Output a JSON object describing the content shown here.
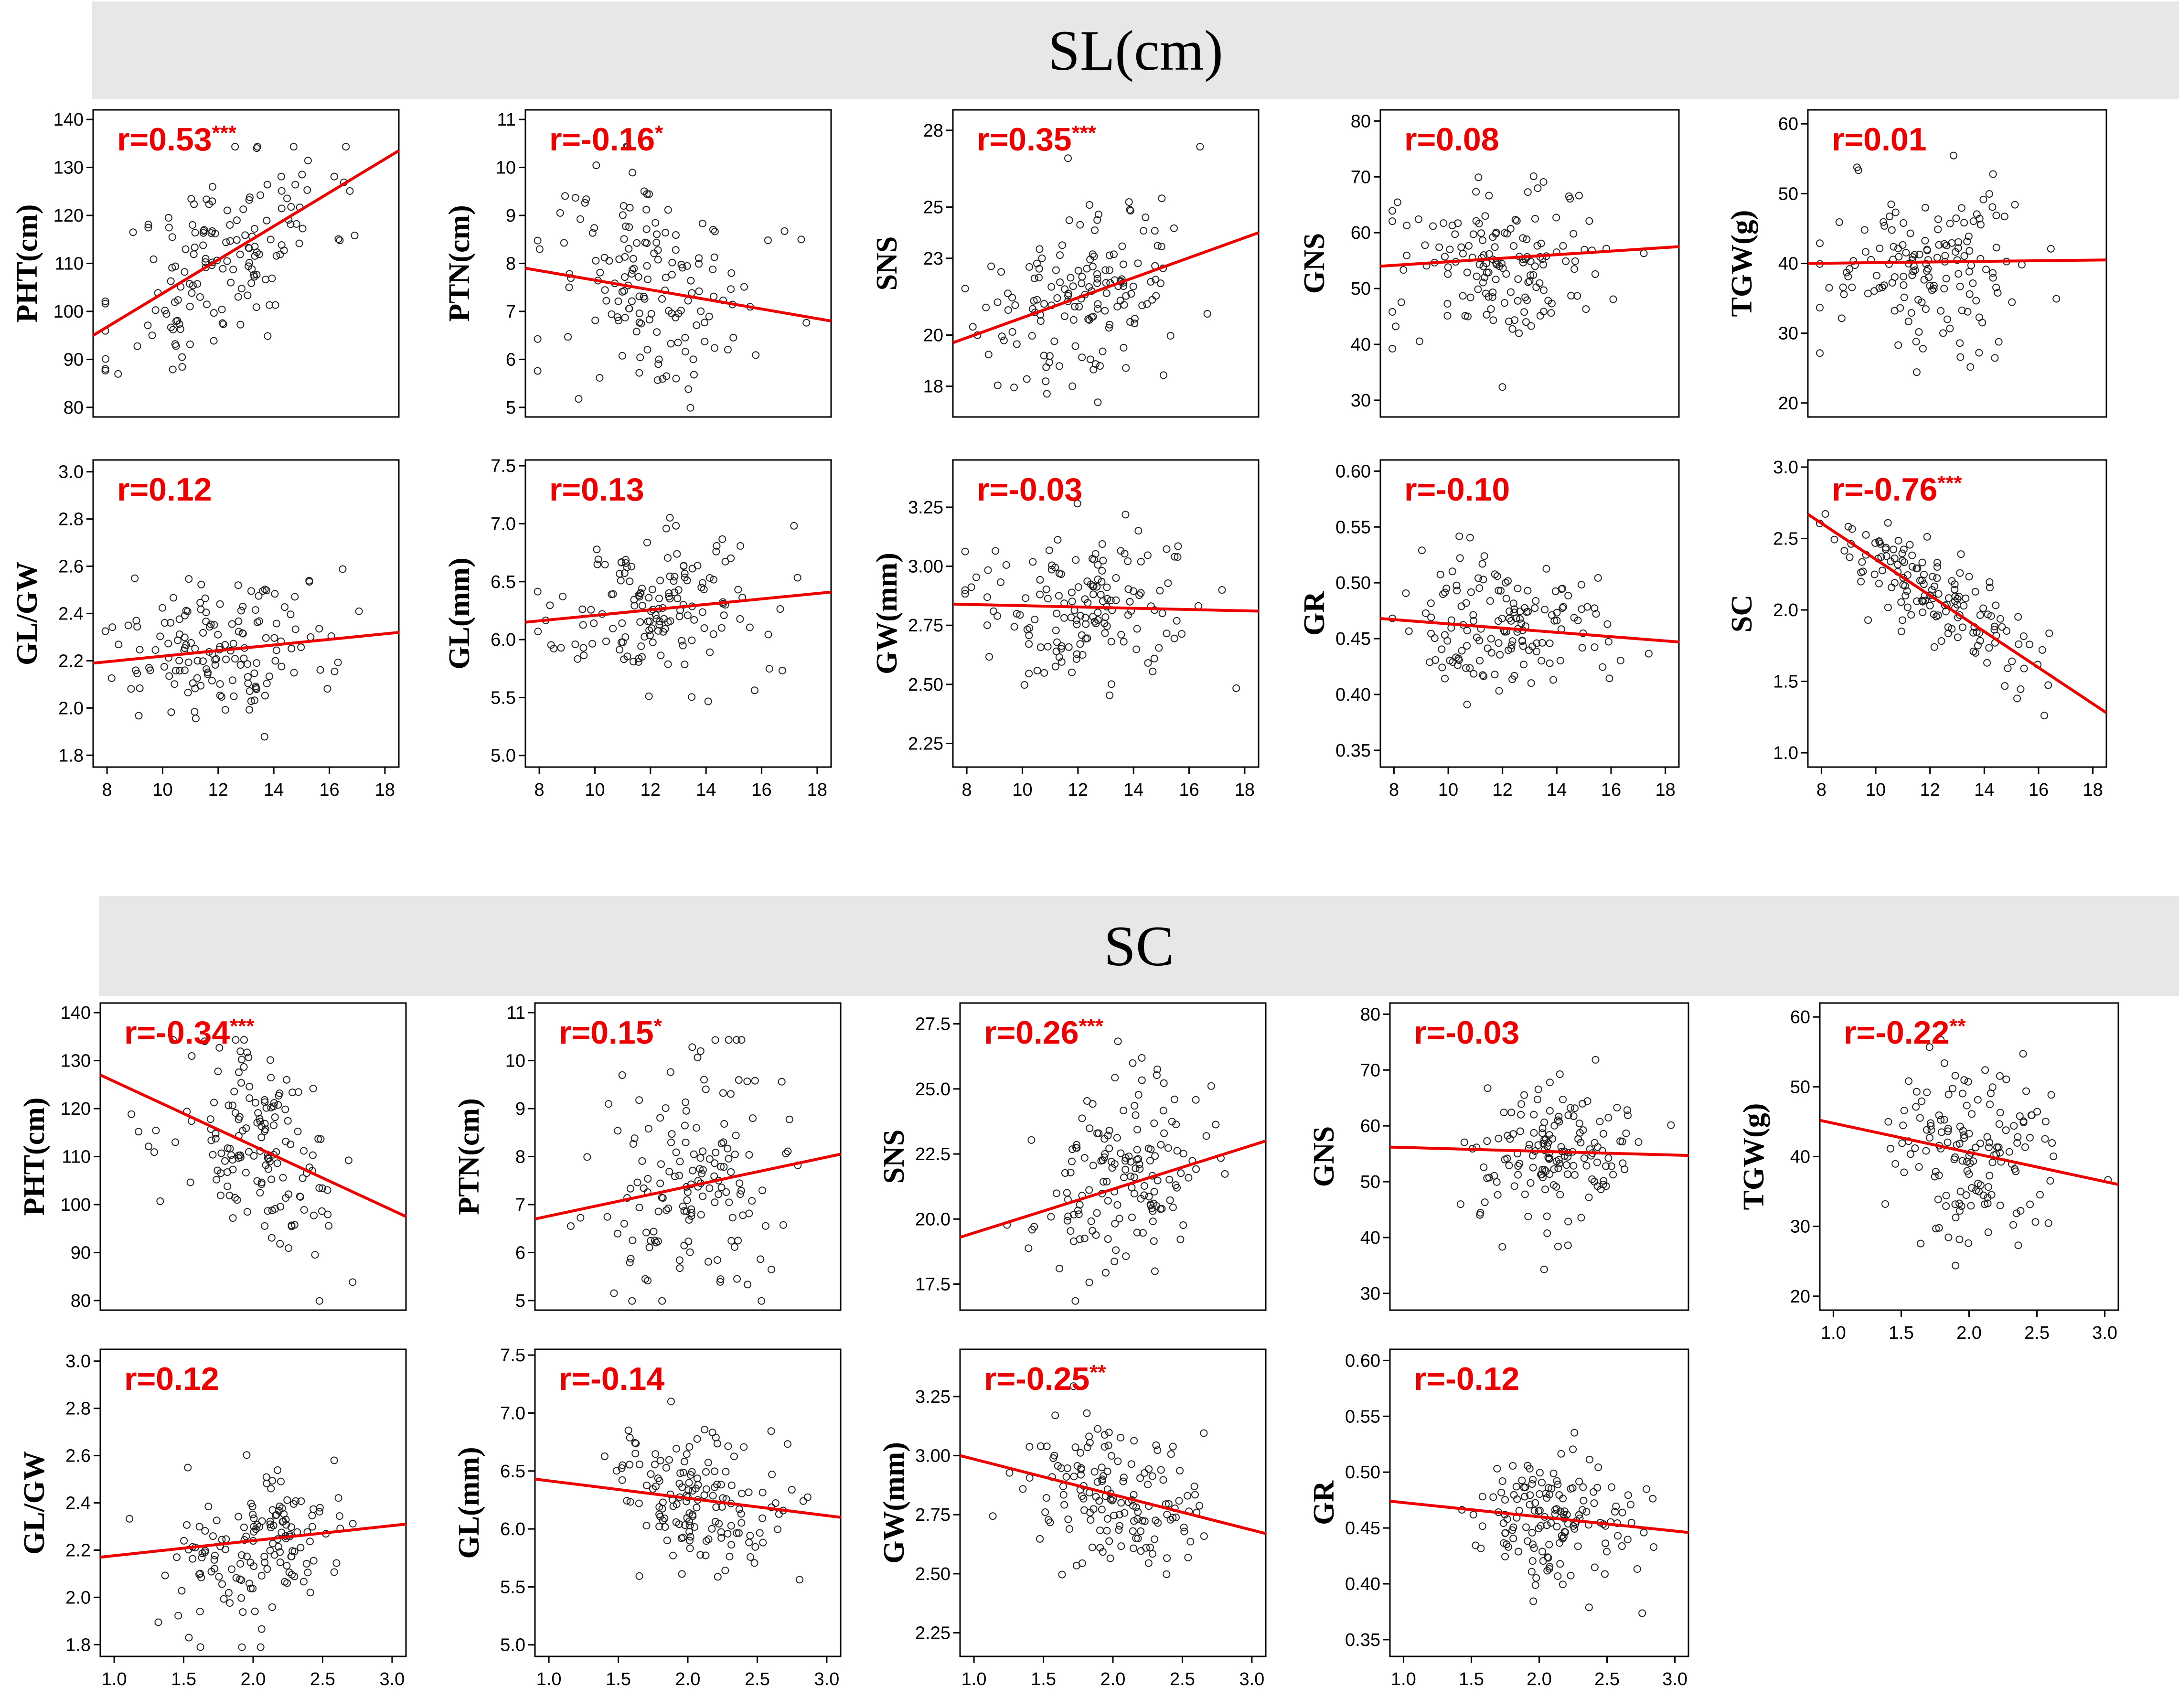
{
  "sections": [
    {
      "title": "SL(cm)",
      "xlabel": "SL(cm)"
    },
    {
      "title": "SC",
      "xlabel": "SC"
    }
  ],
  "colors": {
    "fit_line": "#ee0000",
    "label": "#ee0000",
    "point": "#222222",
    "banner": "#e7e7e7"
  },
  "chart_data": [
    {
      "id": "SL-PHT",
      "section": 0,
      "type": "scatter",
      "xlabel": "SL(cm)",
      "ylabel": "PHT(cm)",
      "xlim": [
        7.5,
        18.5
      ],
      "ylim": [
        78,
        142
      ],
      "xticks": [],
      "yticks": [
        80,
        90,
        100,
        110,
        120,
        130,
        140
      ],
      "r_text": "r=0.53",
      "stars": "***",
      "fit": {
        "x": [
          7.5,
          18.5
        ],
        "y": [
          95,
          133.5
        ]
      },
      "cloud": {
        "mx": 12.2,
        "sx": 1.9,
        "my": 111,
        "sy": 12,
        "r": 0.53,
        "n": 150,
        "seed": 11
      },
      "points": []
    },
    {
      "id": "SL-PTN",
      "section": 0,
      "type": "scatter",
      "xlabel": "SL(cm)",
      "ylabel": "PTN(cm)",
      "xlim": [
        7.5,
        18.5
      ],
      "ylim": [
        4.8,
        11.2
      ],
      "xticks": [],
      "yticks": [
        5,
        6,
        7,
        8,
        9,
        10,
        11
      ],
      "r_text": "r=-0.16",
      "stars": "*",
      "fit": {
        "x": [
          7.5,
          18.5
        ],
        "y": [
          7.9,
          6.8
        ]
      },
      "cloud": {
        "mx": 12.2,
        "sx": 1.9,
        "my": 7.5,
        "sy": 1.2,
        "r": -0.16,
        "n": 150,
        "seed": 12
      },
      "points": []
    },
    {
      "id": "SL-SNS",
      "section": 0,
      "type": "scatter",
      "xlabel": "SL(cm)",
      "ylabel": "SNS",
      "xlim": [
        7.5,
        18.5
      ],
      "ylim": [
        16.8,
        28.8
      ],
      "xticks": [],
      "yticks": [
        18,
        20,
        23,
        25,
        28
      ],
      "r_text": "r=0.35",
      "stars": "***",
      "fit": {
        "x": [
          7.5,
          18.5
        ],
        "y": [
          19.7,
          24
        ]
      },
      "cloud": {
        "mx": 12.2,
        "sx": 1.9,
        "my": 21.5,
        "sy": 1.8,
        "r": 0.35,
        "n": 150,
        "seed": 13
      },
      "points": []
    },
    {
      "id": "SL-GNS",
      "section": 0,
      "type": "scatter",
      "xlabel": "SL(cm)",
      "ylabel": "GNS",
      "xlim": [
        7.5,
        18.5
      ],
      "ylim": [
        27,
        82
      ],
      "xticks": [],
      "yticks": [
        30,
        40,
        50,
        60,
        70,
        80
      ],
      "r_text": "r=0.08",
      "stars": "",
      "fit": {
        "x": [
          7.5,
          18.5
        ],
        "y": [
          54,
          57.5
        ]
      },
      "cloud": {
        "mx": 12.2,
        "sx": 1.9,
        "my": 55,
        "sy": 7,
        "r": 0.08,
        "n": 150,
        "seed": 14
      },
      "points": []
    },
    {
      "id": "SL-TGW",
      "section": 0,
      "type": "scatter",
      "xlabel": "SL(cm)",
      "ylabel": "TGW(g)",
      "xlim": [
        7.5,
        18.5
      ],
      "ylim": [
        18,
        62
      ],
      "xticks": [],
      "yticks": [
        20,
        30,
        40,
        50,
        60
      ],
      "r_text": "r=0.01",
      "stars": "",
      "fit": {
        "x": [
          7.5,
          18.5
        ],
        "y": [
          40,
          40.5
        ]
      },
      "cloud": {
        "mx": 12.2,
        "sx": 1.9,
        "my": 40,
        "sy": 6,
        "r": 0.01,
        "n": 150,
        "seed": 15
      },
      "points": []
    },
    {
      "id": "SL-GLGW",
      "section": 0,
      "type": "scatter",
      "xlabel": "SL(cm)",
      "ylabel": "GL/GW",
      "xlim": [
        7.5,
        18.5
      ],
      "ylim": [
        1.75,
        3.05
      ],
      "xticks": [
        8,
        10,
        12,
        14,
        16,
        18
      ],
      "yticks": [
        1.8,
        2.0,
        2.2,
        2.4,
        2.6,
        2.8,
        3.0
      ],
      "r_text": "r=0.12",
      "stars": "",
      "fit": {
        "x": [
          7.5,
          18.5
        ],
        "y": [
          2.19,
          2.32
        ]
      },
      "cloud": {
        "mx": 12.2,
        "sx": 1.9,
        "my": 2.24,
        "sy": 0.15,
        "r": 0.12,
        "n": 150,
        "seed": 16
      },
      "points": []
    },
    {
      "id": "SL-GL",
      "section": 0,
      "type": "scatter",
      "xlabel": "SL(cm)",
      "ylabel": "GL(mm)",
      "xlim": [
        7.5,
        18.5
      ],
      "ylim": [
        4.9,
        7.55
      ],
      "xticks": [
        8,
        10,
        12,
        14,
        16,
        18
      ],
      "yticks": [
        5.0,
        5.5,
        6.0,
        6.5,
        7.0,
        7.5
      ],
      "r_text": "r=0.13",
      "stars": "",
      "fit": {
        "x": [
          7.5,
          18.5
        ],
        "y": [
          6.15,
          6.41
        ]
      },
      "cloud": {
        "mx": 12.2,
        "sx": 1.9,
        "my": 6.25,
        "sy": 0.3,
        "r": 0.13,
        "n": 150,
        "seed": 17
      },
      "points": []
    },
    {
      "id": "SL-GW",
      "section": 0,
      "type": "scatter",
      "xlabel": "SL(cm)",
      "ylabel": "GW(mm)",
      "xlim": [
        7.5,
        18.5
      ],
      "ylim": [
        2.15,
        3.45
      ],
      "xticks": [
        8,
        10,
        12,
        14,
        16,
        18
      ],
      "yticks": [
        2.25,
        2.5,
        2.75,
        3.0,
        3.25
      ],
      "r_text": "r=-0.03",
      "stars": "",
      "fit": {
        "x": [
          7.5,
          18.5
        ],
        "y": [
          2.84,
          2.81
        ]
      },
      "cloud": {
        "mx": 12.2,
        "sx": 1.9,
        "my": 2.82,
        "sy": 0.16,
        "r": -0.03,
        "n": 150,
        "seed": 18
      },
      "points": []
    },
    {
      "id": "SL-GR",
      "section": 0,
      "type": "scatter",
      "xlabel": "SL(cm)",
      "ylabel": "GR",
      "xlim": [
        7.5,
        18.5
      ],
      "ylim": [
        0.335,
        0.61
      ],
      "xticks": [
        8,
        10,
        12,
        14,
        16,
        18
      ],
      "yticks": [
        0.35,
        0.4,
        0.45,
        0.5,
        0.55,
        0.6
      ],
      "r_text": "r=-0.10",
      "stars": "",
      "fit": {
        "x": [
          7.5,
          18.5
        ],
        "y": [
          0.468,
          0.447
        ]
      },
      "cloud": {
        "mx": 12.2,
        "sx": 1.9,
        "my": 0.46,
        "sy": 0.03,
        "r": -0.1,
        "n": 150,
        "seed": 19
      },
      "points": []
    },
    {
      "id": "SL-SC",
      "section": 0,
      "type": "scatter",
      "xlabel": "SL(cm)",
      "ylabel": "SC",
      "xlim": [
        7.5,
        18.5
      ],
      "ylim": [
        0.9,
        3.05
      ],
      "xticks": [
        8,
        10,
        12,
        14,
        16,
        18
      ],
      "yticks": [
        1.0,
        1.5,
        2.0,
        2.5,
        3.0
      ],
      "r_text": "r=-0.76",
      "stars": "***",
      "fit": {
        "x": [
          7.5,
          18.5
        ],
        "y": [
          2.67,
          1.28
        ]
      },
      "cloud": {
        "mx": 12.2,
        "sx": 1.9,
        "my": 2.1,
        "sy": 0.3,
        "r": -0.76,
        "n": 150,
        "seed": 20
      },
      "points": []
    },
    {
      "id": "SC-PHT",
      "section": 1,
      "type": "scatter",
      "xlabel": "SC",
      "ylabel": "PHT(cm)",
      "xlim": [
        0.9,
        3.1
      ],
      "ylim": [
        78,
        142
      ],
      "xticks": [],
      "yticks": [
        80,
        90,
        100,
        110,
        120,
        130,
        140
      ],
      "r_text": "r=-0.34",
      "stars": "***",
      "fit": {
        "x": [
          0.9,
          3.1
        ],
        "y": [
          127,
          97.5
        ]
      },
      "cloud": {
        "mx": 2.05,
        "sx": 0.3,
        "my": 111,
        "sy": 11,
        "r": -0.34,
        "n": 150,
        "seed": 21
      },
      "points": []
    },
    {
      "id": "SC-PTN",
      "section": 1,
      "type": "scatter",
      "xlabel": "SC",
      "ylabel": "PTN(cm)",
      "xlim": [
        0.9,
        3.1
      ],
      "ylim": [
        4.8,
        11.2
      ],
      "xticks": [],
      "yticks": [
        5,
        6,
        7,
        8,
        9,
        10,
        11
      ],
      "r_text": "r=0.15",
      "stars": "*",
      "fit": {
        "x": [
          0.9,
          3.1
        ],
        "y": [
          6.7,
          8.05
        ]
      },
      "cloud": {
        "mx": 2.05,
        "sx": 0.3,
        "my": 7.5,
        "sy": 1.2,
        "r": 0.15,
        "n": 150,
        "seed": 22
      },
      "points": []
    },
    {
      "id": "SC-SNS",
      "section": 1,
      "type": "scatter",
      "xlabel": "SC",
      "ylabel": "SNS",
      "xlim": [
        0.9,
        3.1
      ],
      "ylim": [
        16.5,
        28.3
      ],
      "xticks": [],
      "yticks": [
        17.5,
        20.0,
        22.5,
        25.0,
        27.5
      ],
      "r_text": "r=0.26",
      "stars": "***",
      "fit": {
        "x": [
          0.9,
          3.1
        ],
        "y": [
          19.3,
          23
        ]
      },
      "cloud": {
        "mx": 2.05,
        "sx": 0.3,
        "my": 21.5,
        "sy": 1.8,
        "r": 0.26,
        "n": 150,
        "seed": 23
      },
      "points": []
    },
    {
      "id": "SC-GNS",
      "section": 1,
      "type": "scatter",
      "xlabel": "SC",
      "ylabel": "GNS",
      "xlim": [
        0.9,
        3.1
      ],
      "ylim": [
        27,
        82
      ],
      "xticks": [],
      "yticks": [
        30,
        40,
        50,
        60,
        70,
        80
      ],
      "r_text": "r=-0.03",
      "stars": "",
      "fit": {
        "x": [
          0.9,
          3.1
        ],
        "y": [
          56.2,
          54.7
        ]
      },
      "cloud": {
        "mx": 2.05,
        "sx": 0.3,
        "my": 55,
        "sy": 7,
        "r": -0.03,
        "n": 150,
        "seed": 24
      },
      "points": []
    },
    {
      "id": "SC-TGW",
      "section": 1,
      "type": "scatter",
      "xlabel": "SC",
      "ylabel": "TGW(g)",
      "xlim": [
        0.9,
        3.1
      ],
      "ylim": [
        18,
        62
      ],
      "xticks": [
        1.0,
        1.5,
        2.0,
        2.5,
        3.0
      ],
      "yticks": [
        20,
        30,
        40,
        50,
        60
      ],
      "r_text": "r=-0.22",
      "stars": "**",
      "fit": {
        "x": [
          0.9,
          3.1
        ],
        "y": [
          45.2,
          36
        ]
      },
      "cloud": {
        "mx": 2.05,
        "sx": 0.3,
        "my": 40,
        "sy": 6,
        "r": -0.22,
        "n": 150,
        "seed": 25
      },
      "points": []
    },
    {
      "id": "SC-GLGW",
      "section": 1,
      "type": "scatter",
      "xlabel": "SC",
      "ylabel": "GL/GW",
      "xlim": [
        0.9,
        3.1
      ],
      "ylim": [
        1.75,
        3.05
      ],
      "xticks": [
        1.0,
        1.5,
        2.0,
        2.5,
        3.0
      ],
      "yticks": [
        1.8,
        2.0,
        2.2,
        2.4,
        2.6,
        2.8,
        3.0
      ],
      "r_text": "r=0.12",
      "stars": "",
      "fit": {
        "x": [
          0.9,
          3.1
        ],
        "y": [
          2.17,
          2.31
        ]
      },
      "cloud": {
        "mx": 2.05,
        "sx": 0.3,
        "my": 2.24,
        "sy": 0.15,
        "r": 0.12,
        "n": 150,
        "seed": 26
      },
      "points": []
    },
    {
      "id": "SC-GL",
      "section": 1,
      "type": "scatter",
      "xlabel": "SC",
      "ylabel": "GL(mm)",
      "xlim": [
        0.9,
        3.1
      ],
      "ylim": [
        4.9,
        7.55
      ],
      "xticks": [
        1.0,
        1.5,
        2.0,
        2.5,
        3.0
      ],
      "yticks": [
        5.0,
        5.5,
        6.0,
        6.5,
        7.0,
        7.5
      ],
      "r_text": "r=-0.14",
      "stars": "",
      "fit": {
        "x": [
          0.9,
          3.1
        ],
        "y": [
          6.43,
          6.1
        ]
      },
      "cloud": {
        "mx": 2.05,
        "sx": 0.3,
        "my": 6.25,
        "sy": 0.3,
        "r": -0.14,
        "n": 150,
        "seed": 27
      },
      "points": []
    },
    {
      "id": "SC-GW",
      "section": 1,
      "type": "scatter",
      "xlabel": "SC",
      "ylabel": "GW(mm)",
      "xlim": [
        0.9,
        3.1
      ],
      "ylim": [
        2.15,
        3.45
      ],
      "xticks": [
        1.0,
        1.5,
        2.0,
        2.5,
        3.0
      ],
      "yticks": [
        2.25,
        2.5,
        2.75,
        3.0,
        3.25
      ],
      "r_text": "r=-0.25",
      "stars": "**",
      "fit": {
        "x": [
          0.9,
          3.1
        ],
        "y": [
          3.0,
          2.67
        ]
      },
      "cloud": {
        "mx": 2.05,
        "sx": 0.3,
        "my": 2.82,
        "sy": 0.16,
        "r": -0.25,
        "n": 150,
        "seed": 28
      },
      "points": []
    },
    {
      "id": "SC-GR",
      "section": 1,
      "type": "scatter",
      "xlabel": "SC",
      "ylabel": "GR",
      "xlim": [
        0.9,
        3.1
      ],
      "ylim": [
        0.335,
        0.61
      ],
      "xticks": [
        1.0,
        1.5,
        2.0,
        2.5,
        3.0
      ],
      "yticks": [
        0.35,
        0.4,
        0.45,
        0.5,
        0.55,
        0.6
      ],
      "r_text": "r=-0.12",
      "stars": "",
      "fit": {
        "x": [
          0.9,
          3.1
        ],
        "y": [
          0.474,
          0.446
        ]
      },
      "cloud": {
        "mx": 2.05,
        "sx": 0.3,
        "my": 0.46,
        "sy": 0.03,
        "r": -0.12,
        "n": 150,
        "seed": 29
      },
      "points": []
    }
  ]
}
